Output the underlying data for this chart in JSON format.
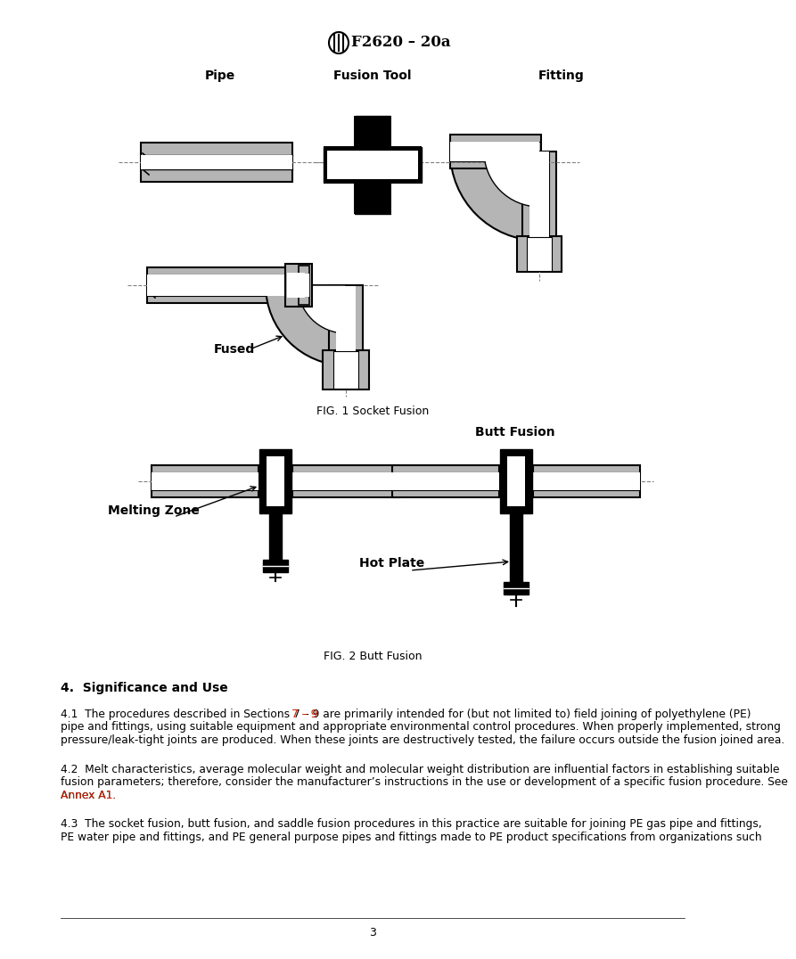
{
  "title": "F2620 – 20a",
  "fig1_caption": "FIG. 1 Socket Fusion",
  "fig2_caption": "FIG. 2 Butt Fusion",
  "section_header": "4.  Significance and Use",
  "para41_full": "4.1  The procedures described in Sections 7 – 9 are primarily intended for (but not limited to) field joining of polyethylene (PE) pipe and fittings, using suitable equipment and appropriate environmental control procedures. When properly implemented, strong pressure/leak-tight joints are produced. When these joints are destructively tested, the failure occurs outside the fusion joined area.",
  "para41_link_text": "7 – 9",
  "para42_full": "4.2  Melt characteristics, average molecular weight and molecular weight distribution are influential factors in establishing suitable fusion parameters; therefore, consider the manufacturer’s instructions in the use or development of a specific fusion procedure. See Annex A1.",
  "para42_link_text": "Annex A1.",
  "para43_full": "4.3  The socket fusion, butt fusion, and saddle fusion procedures in this practice are suitable for joining PE gas pipe and fittings, PE water pipe and fittings, and PE general purpose pipes and fittings made to PE product specifications from organizations such",
  "page_number": "3",
  "label_pipe": "Pipe",
  "label_fusion_tool": "Fusion Tool",
  "label_fitting": "Fitting",
  "label_fused": "Fused",
  "label_melting_zone": "Melting Zone",
  "label_hot_plate": "Hot Plate",
  "label_butt_fusion": "Butt Fusion",
  "bg_color": "#ffffff",
  "gray_color": "#b5b5b5",
  "black": "#000000",
  "red_color": "#cc2200",
  "line_gray": "#808080"
}
